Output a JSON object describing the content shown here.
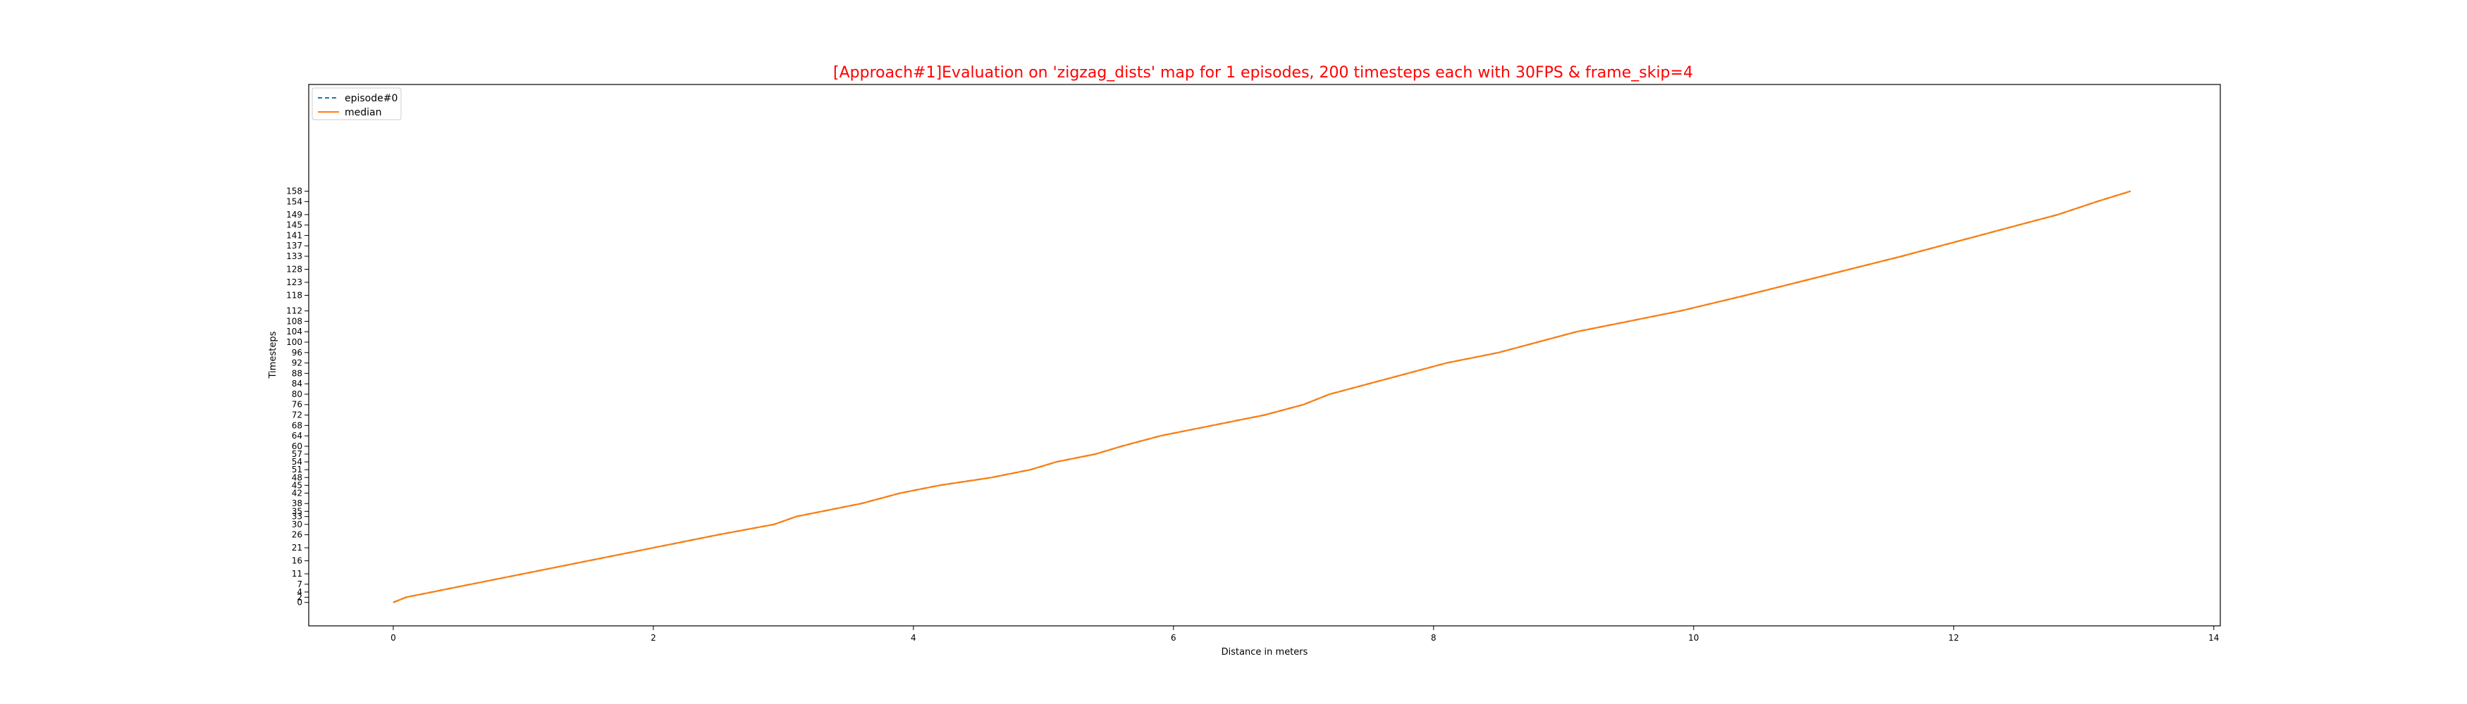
{
  "chart_data": {
    "type": "line",
    "title": "[Approach#1]Evaluation on 'zigzag_dists' map for 1 episodes, 200 timesteps each with 30FPS & frame_skip=4",
    "xlabel": "Distance in meters",
    "ylabel": "Timesteps",
    "xlim": [
      -0.65,
      14.05
    ],
    "ylim": [
      -9,
      199
    ],
    "x_ticks": [
      "0",
      "2",
      "4",
      "6",
      "8",
      "10",
      "12",
      "14"
    ],
    "x_tick_values": [
      0,
      2,
      4,
      6,
      8,
      10,
      12,
      14
    ],
    "grid": false,
    "legend_placement": "upper-left",
    "series": [
      {
        "name": "episode#0",
        "color": "#1f77b4",
        "style": "dashed",
        "x": [
          0,
          0.1,
          0.3,
          0.6,
          1.0,
          1.5,
          2.0,
          2.5,
          2.93,
          3.1,
          3.3,
          3.6,
          3.9,
          4.2,
          4.6,
          4.9,
          5.1,
          5.4,
          5.6,
          5.9,
          6.3,
          6.7,
          7.0,
          7.2,
          7.5,
          7.8,
          8.1,
          8.5,
          8.8,
          9.1,
          9.5,
          9.9,
          10.4,
          10.8,
          11.2,
          11.6,
          11.9,
          12.2,
          12.5,
          12.8,
          13.1,
          13.36
        ],
        "y": [
          0,
          2,
          4,
          7,
          11,
          16,
          21,
          26,
          30,
          33,
          35,
          38,
          42,
          45,
          48,
          51,
          54,
          57,
          60,
          64,
          68,
          72,
          76,
          80,
          84,
          88,
          92,
          96,
          100,
          104,
          108,
          112,
          118,
          123,
          128,
          133,
          137,
          141,
          145,
          149,
          154,
          158
        ]
      },
      {
        "name": "median",
        "color": "#ff7f0e",
        "style": "solid",
        "x": [
          0,
          0.1,
          0.3,
          0.6,
          1.0,
          1.5,
          2.0,
          2.5,
          2.93,
          3.1,
          3.3,
          3.6,
          3.9,
          4.2,
          4.6,
          4.9,
          5.1,
          5.4,
          5.6,
          5.9,
          6.3,
          6.7,
          7.0,
          7.2,
          7.5,
          7.8,
          8.1,
          8.5,
          8.8,
          9.1,
          9.5,
          9.9,
          10.4,
          10.8,
          11.2,
          11.6,
          11.9,
          12.2,
          12.5,
          12.8,
          13.1,
          13.36
        ],
        "y": [
          0,
          2,
          4,
          7,
          11,
          16,
          21,
          26,
          30,
          33,
          35,
          38,
          42,
          45,
          48,
          51,
          54,
          57,
          60,
          64,
          68,
          72,
          76,
          80,
          84,
          88,
          92,
          96,
          100,
          104,
          108,
          112,
          118,
          123,
          128,
          133,
          137,
          141,
          145,
          149,
          154,
          158
        ]
      }
    ],
    "title_color": "#ff0000"
  }
}
